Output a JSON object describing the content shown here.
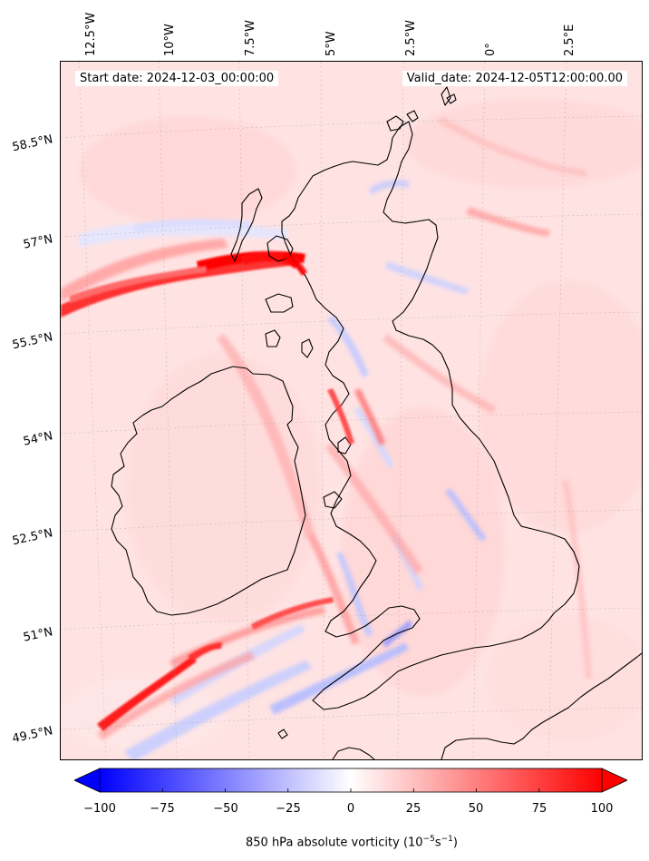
{
  "map": {
    "start_date": "Start date: 2024-12-03_00:00:00",
    "valid_date": "Valid_date: 2024-12-05T12:00:00.00",
    "longitude_labels": [
      "12.5°W",
      "10°W",
      "7.5°W",
      "5°W",
      "2.5°W",
      "0°",
      "2.5°E"
    ],
    "latitude_labels": [
      "58.5°N",
      "57°N",
      "55.5°N",
      "54°N",
      "52.5°N",
      "51°N",
      "49.5°N"
    ],
    "field_colors": {
      "background": "#ffe3e3",
      "strong_positive": "#ff0000",
      "moderate_positive": "#ff8a8a",
      "weak_negative": "#d8dcff",
      "strong_negative": "#6e78ff",
      "coastline": "#000000"
    }
  },
  "colorbar": {
    "ticks": [
      "−100",
      "−75",
      "−50",
      "−25",
      "0",
      "25",
      "50",
      "75",
      "100"
    ],
    "min": -100,
    "max": 100,
    "label_prefix": "850 hPa absolute vorticity (10",
    "label_exp1": "−5",
    "label_mid": "s",
    "label_exp2": "−1",
    "label_suffix": ")",
    "color_min": "#0000ff",
    "color_zero": "#ffffff",
    "color_max": "#ff0000"
  }
}
